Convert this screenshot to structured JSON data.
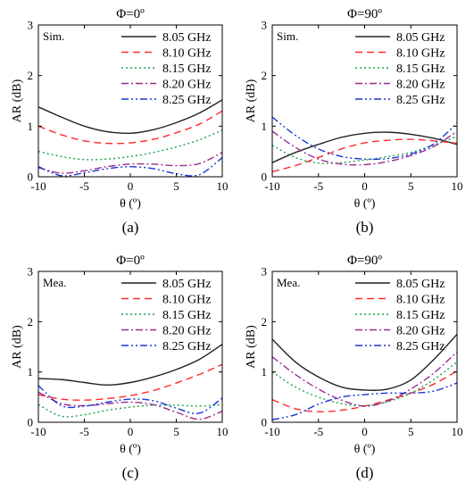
{
  "figure": {
    "legend_labels": [
      "8.05 GHz",
      "8.10 GHz",
      "8.15 GHz",
      "8.20 GHz",
      "8.25 GHz"
    ],
    "series_styles": [
      {
        "color": "#222222",
        "dash": "solid"
      },
      {
        "color": "#ff2a2a",
        "dash": "dash"
      },
      {
        "color": "#19a34a",
        "dash": "dot"
      },
      {
        "color": "#9b2c8e",
        "dash": "dashdot"
      },
      {
        "color": "#1a35d6",
        "dash": "dashdotdot"
      }
    ]
  },
  "chart_data": [
    {
      "type": "line",
      "panel_caption": "(a)",
      "title": "Φ=0º",
      "tag": "Sim.",
      "xlabel": "θ (º)",
      "ylabel": "AR (dB)",
      "xlim": [
        -10,
        10
      ],
      "ylim": [
        0,
        3
      ],
      "xticks": [
        -10,
        -5,
        0,
        5,
        10
      ],
      "yticks": [
        0,
        1,
        2,
        3
      ],
      "legend_position": "top-right",
      "x": [
        -10,
        -7.5,
        -5,
        -2.5,
        0,
        2.5,
        5,
        7.5,
        10
      ],
      "series": [
        {
          "name": "8.05 GHz",
          "values": [
            1.38,
            1.18,
            1.0,
            0.89,
            0.86,
            0.93,
            1.07,
            1.26,
            1.52
          ]
        },
        {
          "name": "8.10 GHz",
          "values": [
            1.0,
            0.83,
            0.71,
            0.66,
            0.67,
            0.74,
            0.87,
            1.04,
            1.3
          ]
        },
        {
          "name": "8.15 GHz",
          "values": [
            0.5,
            0.4,
            0.34,
            0.35,
            0.4,
            0.48,
            0.59,
            0.73,
            0.92
          ]
        },
        {
          "name": "8.20 GHz",
          "values": [
            0.18,
            0.07,
            0.12,
            0.2,
            0.25,
            0.25,
            0.22,
            0.26,
            0.48
          ]
        },
        {
          "name": "8.25 GHz",
          "values": [
            0.2,
            0.02,
            0.08,
            0.16,
            0.2,
            0.16,
            0.06,
            0.04,
            0.38
          ]
        }
      ]
    },
    {
      "type": "line",
      "panel_caption": "(b)",
      "title": "Φ=90º",
      "tag": "Sim.",
      "xlabel": "θ (º)",
      "ylabel": "AR (dB)",
      "xlim": [
        -10,
        10
      ],
      "ylim": [
        0,
        3
      ],
      "xticks": [
        -10,
        -5,
        0,
        5,
        10
      ],
      "yticks": [
        0,
        1,
        2,
        3
      ],
      "legend_position": "top-right",
      "x": [
        -10,
        -7.5,
        -5,
        -2.5,
        0,
        2.5,
        5,
        7.5,
        10
      ],
      "series": [
        {
          "name": "8.05 GHz",
          "values": [
            0.28,
            0.48,
            0.64,
            0.78,
            0.86,
            0.88,
            0.84,
            0.76,
            0.64
          ]
        },
        {
          "name": "8.10 GHz",
          "values": [
            0.1,
            0.22,
            0.38,
            0.55,
            0.67,
            0.72,
            0.74,
            0.71,
            0.66
          ]
        },
        {
          "name": "8.15 GHz",
          "values": [
            0.62,
            0.38,
            0.27,
            0.28,
            0.33,
            0.4,
            0.48,
            0.63,
            0.8
          ]
        },
        {
          "name": "8.20 GHz",
          "values": [
            0.9,
            0.58,
            0.35,
            0.25,
            0.24,
            0.3,
            0.42,
            0.6,
            0.9
          ]
        },
        {
          "name": "8.25 GHz",
          "values": [
            1.18,
            0.82,
            0.55,
            0.4,
            0.35,
            0.36,
            0.45,
            0.65,
            1.06
          ]
        }
      ]
    },
    {
      "type": "line",
      "panel_caption": "(c)",
      "title": "Φ=0º",
      "tag": "Mea.",
      "xlabel": "θ (º)",
      "ylabel": "AR (dB)",
      "xlim": [
        -10,
        10
      ],
      "ylim": [
        0,
        3
      ],
      "xticks": [
        -10,
        -5,
        0,
        5,
        10
      ],
      "yticks": [
        0,
        1,
        2,
        3
      ],
      "legend_position": "top-right",
      "x": [
        -10,
        -7.5,
        -5,
        -2.5,
        0,
        2.5,
        5,
        7.5,
        10
      ],
      "series": [
        {
          "name": "8.05 GHz",
          "values": [
            0.87,
            0.85,
            0.79,
            0.74,
            0.79,
            0.9,
            1.05,
            1.25,
            1.55
          ]
        },
        {
          "name": "8.10 GHz",
          "values": [
            0.55,
            0.46,
            0.44,
            0.47,
            0.53,
            0.63,
            0.78,
            0.95,
            1.15
          ]
        },
        {
          "name": "8.15 GHz",
          "values": [
            0.35,
            0.12,
            0.15,
            0.24,
            0.3,
            0.34,
            0.34,
            0.32,
            0.35
          ]
        },
        {
          "name": "8.20 GHz",
          "values": [
            0.6,
            0.37,
            0.33,
            0.37,
            0.4,
            0.35,
            0.2,
            0.06,
            0.22
          ]
        },
        {
          "name": "8.25 GHz",
          "values": [
            0.73,
            0.33,
            0.32,
            0.4,
            0.46,
            0.43,
            0.28,
            0.18,
            0.48
          ]
        }
      ]
    },
    {
      "type": "line",
      "panel_caption": "(d)",
      "title": "Φ=90º",
      "tag": "Mea.",
      "xlabel": "θ (º)",
      "ylabel": "AR (dB)",
      "xlim": [
        -10,
        10
      ],
      "ylim": [
        0,
        3
      ],
      "xticks": [
        -10,
        -5,
        0,
        5,
        10
      ],
      "yticks": [
        0,
        1,
        2,
        3
      ],
      "legend_position": "top-right",
      "x": [
        -10,
        -7.5,
        -5,
        -2.5,
        0,
        2.5,
        5,
        7.5,
        10
      ],
      "series": [
        {
          "name": "8.05 GHz",
          "values": [
            1.65,
            1.2,
            0.9,
            0.7,
            0.64,
            0.66,
            0.84,
            1.25,
            1.75
          ]
        },
        {
          "name": "8.10 GHz",
          "values": [
            0.45,
            0.27,
            0.21,
            0.24,
            0.32,
            0.44,
            0.58,
            0.76,
            1.02
          ]
        },
        {
          "name": "8.15 GHz",
          "values": [
            1.0,
            0.7,
            0.5,
            0.37,
            0.33,
            0.41,
            0.58,
            0.85,
            1.2
          ]
        },
        {
          "name": "8.20 GHz",
          "values": [
            1.3,
            0.95,
            0.66,
            0.44,
            0.32,
            0.42,
            0.66,
            0.98,
            1.4
          ]
        },
        {
          "name": "8.25 GHz",
          "values": [
            0.05,
            0.15,
            0.36,
            0.5,
            0.55,
            0.58,
            0.58,
            0.62,
            0.78
          ]
        }
      ]
    }
  ]
}
